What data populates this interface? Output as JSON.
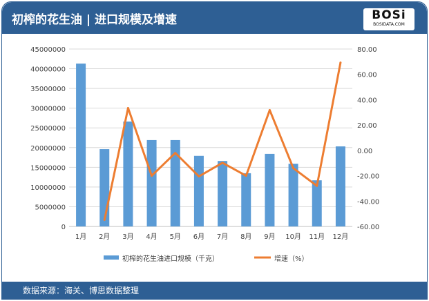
{
  "header": {
    "title": "初榨的花生油 | 进口规模及增速",
    "logo_text": "BOSi",
    "logo_sub": "BOSIDATA.COM"
  },
  "footer": {
    "source": "数据来源：海关、博思数据整理"
  },
  "chart_data": {
    "type": "bar+line",
    "title": "初榨的花生油 | 进口规模及增速",
    "categories": [
      "1月",
      "2月",
      "3月",
      "4月",
      "5月",
      "6月",
      "7月",
      "8月",
      "9月",
      "10月",
      "11月",
      "12月"
    ],
    "series": [
      {
        "name": "初榨的花生油进口规模（千克）",
        "type": "bar",
        "axis": "left",
        "color": "#5b9bd5",
        "values": [
          41300000,
          19600000,
          26600000,
          21900000,
          21900000,
          17900000,
          16600000,
          13500000,
          18400000,
          15900000,
          11700000,
          20300000
        ]
      },
      {
        "name": "增速（%）",
        "type": "line",
        "axis": "right",
        "color": "#ed7d31",
        "values": [
          null,
          -54.8,
          33.4,
          -20.0,
          -2.0,
          -20.5,
          -9.8,
          -20.0,
          31.8,
          -14.0,
          -28.0,
          69.3
        ]
      }
    ],
    "left_axis": {
      "ylim": [
        0,
        45000000
      ],
      "ticks": [
        "0",
        "5000000",
        "10000000",
        "15000000",
        "20000000",
        "25000000",
        "30000000",
        "35000000",
        "40000000",
        "45000000"
      ]
    },
    "right_axis": {
      "ylim": [
        -60,
        80
      ],
      "ticks": [
        "-60.00",
        "-40.00",
        "-20.00",
        "0.00",
        "20.00",
        "40.00",
        "60.00",
        "80.00"
      ]
    },
    "grid": true,
    "legend_position": "bottom"
  }
}
